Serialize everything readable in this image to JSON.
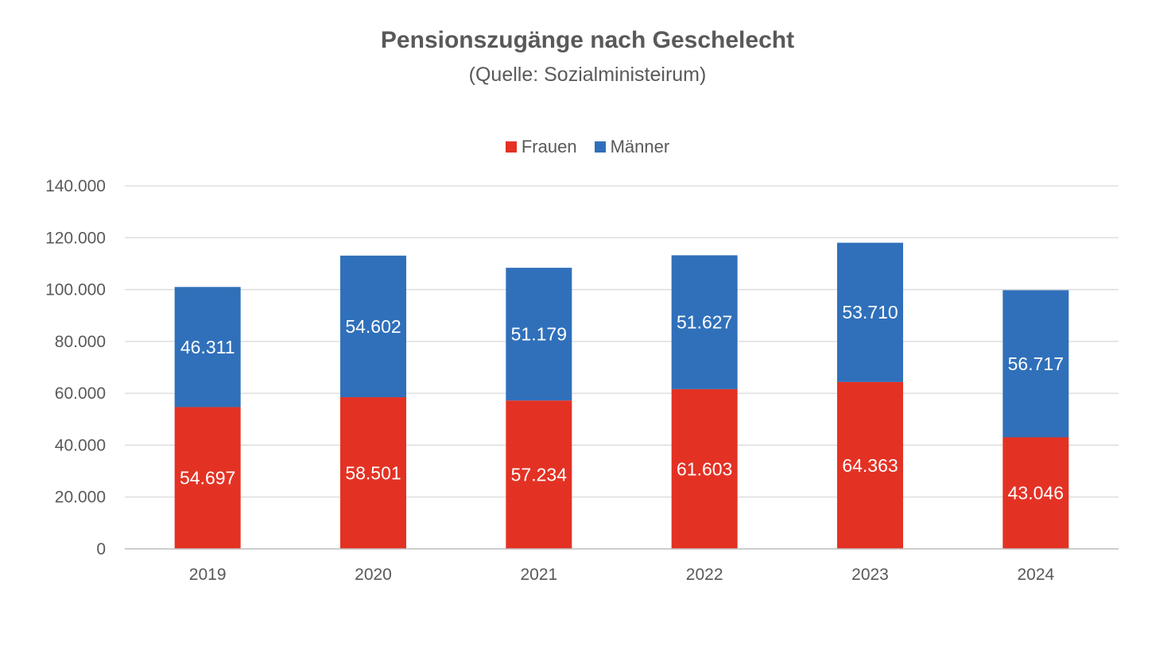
{
  "chart_data": {
    "type": "bar",
    "stacked": true,
    "title": "Pensionszugänge nach Geschelecht",
    "subtitle": "(Quelle: Sozialministeirum)",
    "categories": [
      "2019",
      "2020",
      "2021",
      "2022",
      "2023",
      "2024"
    ],
    "series": [
      {
        "name": "Frauen",
        "color": "#E33224",
        "values": [
          54697,
          58501,
          57234,
          61603,
          64363,
          43046
        ],
        "labels": [
          "54.697",
          "58.501",
          "57.234",
          "61.603",
          "64.363",
          "43.046"
        ]
      },
      {
        "name": "Männer",
        "color": "#3070BA",
        "values": [
          46311,
          54602,
          51179,
          51627,
          53710,
          56717
        ],
        "labels": [
          "46.311",
          "54.602",
          "51.179",
          "51.627",
          "53.710",
          "56.717"
        ]
      }
    ],
    "ylim": [
      0,
      140000
    ],
    "yticks": [
      0,
      20000,
      40000,
      60000,
      80000,
      100000,
      120000,
      140000
    ],
    "ytick_labels": [
      "0",
      "20.000",
      "40.000",
      "60.000",
      "80.000",
      "100.000",
      "120.000",
      "140.000"
    ],
    "grid": true,
    "legend_position": "top"
  }
}
